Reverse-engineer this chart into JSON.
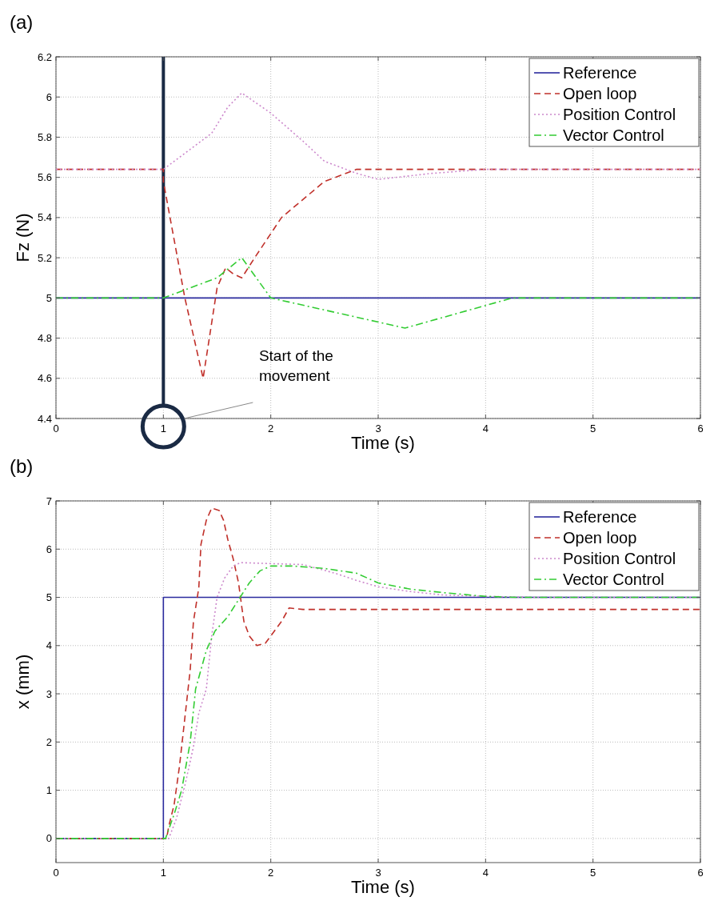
{
  "chart_data": [
    {
      "type": "line",
      "title": "(a)",
      "xlabel": "Time (s)",
      "ylabel": "Fz (N)",
      "xlim": [
        0,
        6
      ],
      "xticks": [
        0,
        1,
        2,
        3,
        4,
        5,
        6
      ],
      "ylim": [
        4.4,
        6.2
      ],
      "yticks": [
        4.4,
        4.6,
        4.8,
        5,
        5.2,
        5.4,
        5.6,
        5.8,
        6,
        6.2
      ],
      "grid": true,
      "legend": "top right",
      "marker": "none",
      "ref_lines": [
        {
          "axis": "x",
          "value": 1,
          "color": "#1a2a44"
        }
      ],
      "annotations": [
        "Start of the movement"
      ],
      "series": [
        {
          "name": "Reference",
          "color": "#2b2b9e",
          "line_style": "solid",
          "x": [
            0,
            6
          ],
          "values": [
            5,
            5
          ]
        },
        {
          "name": "Open loop",
          "color": "#c0302a",
          "line_style": "dashed",
          "x": [
            0,
            1,
            1,
            1.2,
            1.37,
            1.5,
            1.58,
            1.65,
            1.73,
            1.85,
            2.1,
            2.5,
            2.8,
            6
          ],
          "values": [
            5.64,
            5.64,
            5.58,
            5.0,
            4.6,
            5.05,
            5.15,
            5.12,
            5.1,
            5.2,
            5.4,
            5.58,
            5.64,
            5.64
          ]
        },
        {
          "name": "Position Control",
          "color": "#cc88cc",
          "line_style": "dotted",
          "x": [
            0,
            1,
            1.2,
            1.45,
            1.6,
            1.73,
            2.0,
            2.3,
            2.5,
            2.8,
            3.0,
            3.5,
            4,
            6
          ],
          "values": [
            5.64,
            5.64,
            5.72,
            5.82,
            5.95,
            6.02,
            5.92,
            5.78,
            5.68,
            5.62,
            5.59,
            5.62,
            5.64,
            5.64
          ]
        },
        {
          "name": "Vector Control",
          "color": "#33cc33",
          "line_style": "dashdot",
          "x": [
            0,
            1,
            1.5,
            1.73,
            2,
            3.25,
            4.25,
            6
          ],
          "values": [
            5,
            5,
            5.1,
            5.2,
            5.0,
            4.85,
            5,
            5
          ]
        }
      ]
    },
    {
      "type": "line",
      "title": "(b)",
      "xlabel": "Time (s)",
      "ylabel": "x (mm)",
      "xlim": [
        0,
        6
      ],
      "xticks": [
        0,
        1,
        2,
        3,
        4,
        5,
        6
      ],
      "ylim": [
        -0.5,
        7
      ],
      "yticks": [
        0,
        1,
        2,
        3,
        4,
        5,
        6,
        7
      ],
      "grid": true,
      "legend": "top right",
      "marker": "none",
      "series": [
        {
          "name": "Reference",
          "color": "#2b2b9e",
          "line_style": "solid",
          "x": [
            0,
            1,
            1,
            1,
            6
          ],
          "values": [
            0,
            0,
            2.5,
            5,
            5
          ]
        },
        {
          "name": "Open loop",
          "color": "#c0302a",
          "line_style": "dashed",
          "x": [
            0,
            1.03,
            1.05,
            1.1,
            1.15,
            1.2,
            1.25,
            1.28,
            1.33,
            1.35,
            1.4,
            1.45,
            1.52,
            1.56,
            1.6,
            1.65,
            1.7,
            1.73,
            1.75,
            1.8,
            1.87,
            1.95,
            2.0,
            2.1,
            2.17,
            2.3,
            6
          ],
          "values": [
            0,
            0,
            0.25,
            0.7,
            1.5,
            2.5,
            3.5,
            4.5,
            5.2,
            6.1,
            6.6,
            6.85,
            6.8,
            6.6,
            6.2,
            5.8,
            5.3,
            4.8,
            4.5,
            4.2,
            4.0,
            4.05,
            4.2,
            4.5,
            4.78,
            4.75,
            4.75
          ]
        },
        {
          "name": "Position Control",
          "color": "#cc88cc",
          "line_style": "dotted",
          "x": [
            0,
            1.05,
            1.12,
            1.2,
            1.28,
            1.33,
            1.4,
            1.45,
            1.5,
            1.57,
            1.65,
            1.72,
            2.0,
            2.3,
            2.6,
            2.8,
            3.0,
            3.3,
            3.6,
            4.0,
            4.5,
            6
          ],
          "values": [
            0,
            0,
            0.4,
            1.1,
            1.9,
            2.6,
            3.1,
            4.2,
            5.0,
            5.4,
            5.65,
            5.72,
            5.7,
            5.68,
            5.5,
            5.35,
            5.22,
            5.12,
            5.05,
            5.02,
            5.0,
            5.0
          ]
        },
        {
          "name": "Vector Control",
          "color": "#33cc33",
          "line_style": "dashdot",
          "x": [
            0,
            1.02,
            1.1,
            1.17,
            1.25,
            1.3,
            1.4,
            1.48,
            1.6,
            1.7,
            1.8,
            1.9,
            2.0,
            2.2,
            2.5,
            2.8,
            3.0,
            3.3,
            3.6,
            4.0,
            4.3,
            6
          ],
          "values": [
            0,
            0,
            0.5,
            1.0,
            2.0,
            3.1,
            3.9,
            4.3,
            4.6,
            4.95,
            5.3,
            5.55,
            5.65,
            5.65,
            5.6,
            5.5,
            5.3,
            5.17,
            5.1,
            5.02,
            5.0,
            5.0
          ]
        }
      ]
    }
  ]
}
